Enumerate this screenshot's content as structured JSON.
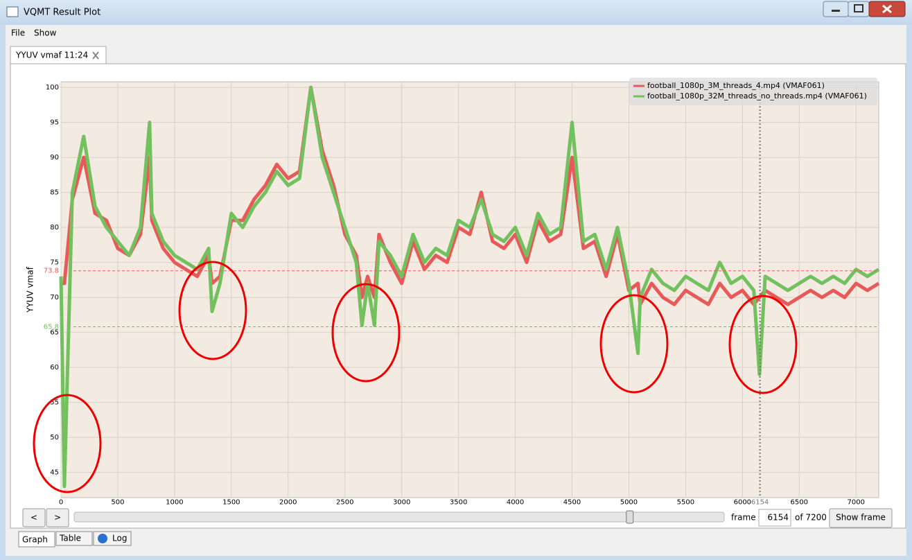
{
  "window": {
    "title": "VQMT Result Plot"
  },
  "menu": [
    "File",
    "Show"
  ],
  "tab": "YYUV vmaf 11:24",
  "chart_data": {
    "type": "line",
    "y_label": "YYUV vmaf",
    "x": [
      0,
      30,
      100,
      200,
      300,
      400,
      500,
      600,
      700,
      780,
      800,
      900,
      1000,
      1100,
      1200,
      1300,
      1330,
      1400,
      1500,
      1600,
      1700,
      1800,
      1900,
      2000,
      2100,
      2200,
      2300,
      2400,
      2500,
      2600,
      2650,
      2700,
      2760,
      2800,
      2900,
      3000,
      3100,
      3200,
      3300,
      3400,
      3500,
      3600,
      3700,
      3800,
      3900,
      4000,
      4100,
      4200,
      4300,
      4400,
      4500,
      4600,
      4700,
      4800,
      4900,
      5000,
      5080,
      5100,
      5200,
      5300,
      5400,
      5500,
      5600,
      5700,
      5800,
      5900,
      6000,
      6100,
      6150,
      6200,
      6300,
      6400,
      6500,
      6600,
      6700,
      6800,
      6900,
      7000,
      7100,
      7200
    ],
    "series": [
      {
        "name": "football_1080p_3M_threads_4.mp4 (VMAF061)",
        "color": "#e85a5a",
        "values": [
          72,
          72,
          84,
          90,
          82,
          81,
          77,
          76,
          79,
          90,
          81,
          77,
          75,
          74,
          73,
          76,
          72,
          73,
          81,
          81,
          84,
          86,
          89,
          87,
          88,
          100,
          91,
          86,
          79,
          76,
          70,
          73,
          70,
          79,
          75,
          72,
          78,
          74,
          76,
          75,
          80,
          79,
          85,
          78,
          77,
          79,
          75,
          81,
          78,
          79,
          90,
          77,
          78,
          73,
          79,
          71,
          72,
          69,
          72,
          70,
          69,
          71,
          70,
          69,
          72,
          70,
          71,
          69,
          70,
          71,
          70,
          69,
          70,
          71,
          70,
          71,
          70,
          72,
          71,
          72
        ]
      },
      {
        "name": "football_1080p_32M_threads_no_threads.mp4 (VMAF061)",
        "color": "#72c05e",
        "values": [
          73,
          43,
          85,
          93,
          83,
          80,
          78,
          76,
          80,
          95,
          82,
          78,
          76,
          75,
          74,
          77,
          68,
          72,
          82,
          80,
          83,
          85,
          88,
          86,
          87,
          100,
          90,
          85,
          80,
          75,
          66,
          72,
          66,
          78,
          76,
          73,
          79,
          75,
          77,
          76,
          81,
          80,
          84,
          79,
          78,
          80,
          76,
          82,
          79,
          80,
          95,
          78,
          79,
          74,
          80,
          72,
          62,
          70,
          74,
          72,
          71,
          73,
          72,
          71,
          75,
          72,
          73,
          71,
          59,
          73,
          72,
          71,
          72,
          73,
          72,
          73,
          72,
          74,
          73,
          74
        ]
      }
    ],
    "xlim": [
      0,
      7200
    ],
    "ylim": [
      41.4,
      100.8
    ],
    "xticks": [
      0,
      500,
      1000,
      1500,
      2000,
      2500,
      3000,
      3500,
      4000,
      4500,
      5000,
      5500,
      6000,
      6500,
      7000
    ],
    "yticks": [
      45,
      50,
      55,
      60,
      65,
      70,
      75,
      80,
      85,
      90,
      95,
      100
    ],
    "grid": true,
    "legend": "top-right",
    "hlines": [
      {
        "value": 73.8,
        "color": "#e85a5a"
      },
      {
        "value": 65.8,
        "color": "#72c05e"
      }
    ],
    "marker_x": 6154
  },
  "controls": {
    "prev": "<",
    "next": ">",
    "frame_label": "frame",
    "of_total": "of 7200",
    "show_frame": "Show frame"
  },
  "bottom_tabs": [
    "Graph",
    "Table",
    "Log"
  ]
}
